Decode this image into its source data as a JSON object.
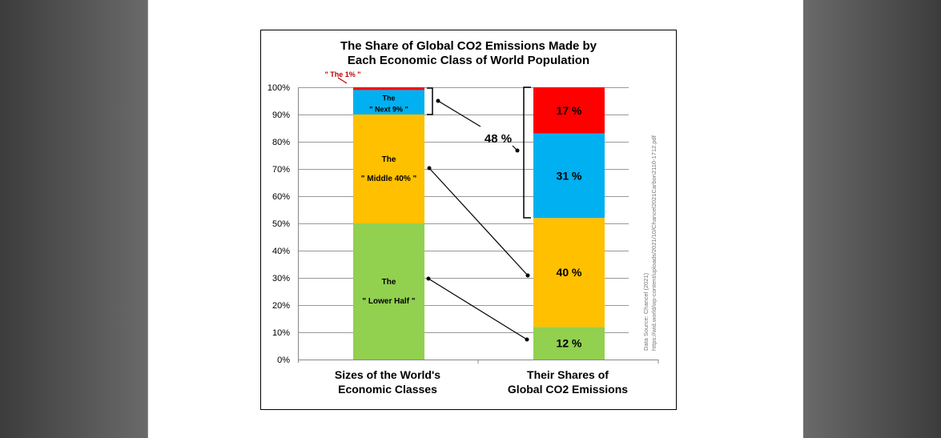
{
  "chart_data": {
    "type": "bar",
    "stacked": true,
    "title": "The Share of Global CO2 Emissions Made by",
    "title_line2": "Each Economic Class of World Population",
    "ylim": [
      0,
      100
    ],
    "yticks": [
      "0%",
      "10%",
      "20%",
      "30%",
      "40%",
      "50%",
      "60%",
      "70%",
      "80%",
      "90%",
      "100%"
    ],
    "grid": true,
    "categories": [
      "Sizes of the World's|Economic Classes",
      "Their Shares of|Global CO2 Emissions"
    ],
    "cat_line1": [
      "Sizes of the World's",
      "Their Shares of"
    ],
    "cat_line2": [
      "Economic Classes",
      "Global CO2 Emissions"
    ],
    "series": [
      {
        "name": "Lower Half",
        "color": "#92d050",
        "values": [
          50,
          12
        ],
        "left_label": [
          "The",
          "\" Lower Half \""
        ],
        "right_label": "12 %"
      },
      {
        "name": "Middle 40%",
        "color": "#ffc000",
        "values": [
          40,
          40
        ],
        "left_label": [
          "The",
          "\" Middle 40% \""
        ],
        "right_label": "40 %"
      },
      {
        "name": "Next 9%",
        "color": "#00b0f0",
        "values": [
          9,
          31
        ],
        "left_label": [
          "The",
          "\" Next 9% \""
        ],
        "right_label": "31 %"
      },
      {
        "name": "Top 1%",
        "color": "#ff0000",
        "values": [
          1,
          17
        ],
        "left_label": [
          "\" The 1% \""
        ],
        "right_label": "17 %"
      }
    ],
    "annotation": "48 %",
    "top1_label_color": "#c00000",
    "source_line1": "Data Source: Chancel (2021)",
    "source_line2": "https://wid.world/wp-content/uploads/2021/10/Chancel2021Carbon2110-1712.pdf"
  }
}
